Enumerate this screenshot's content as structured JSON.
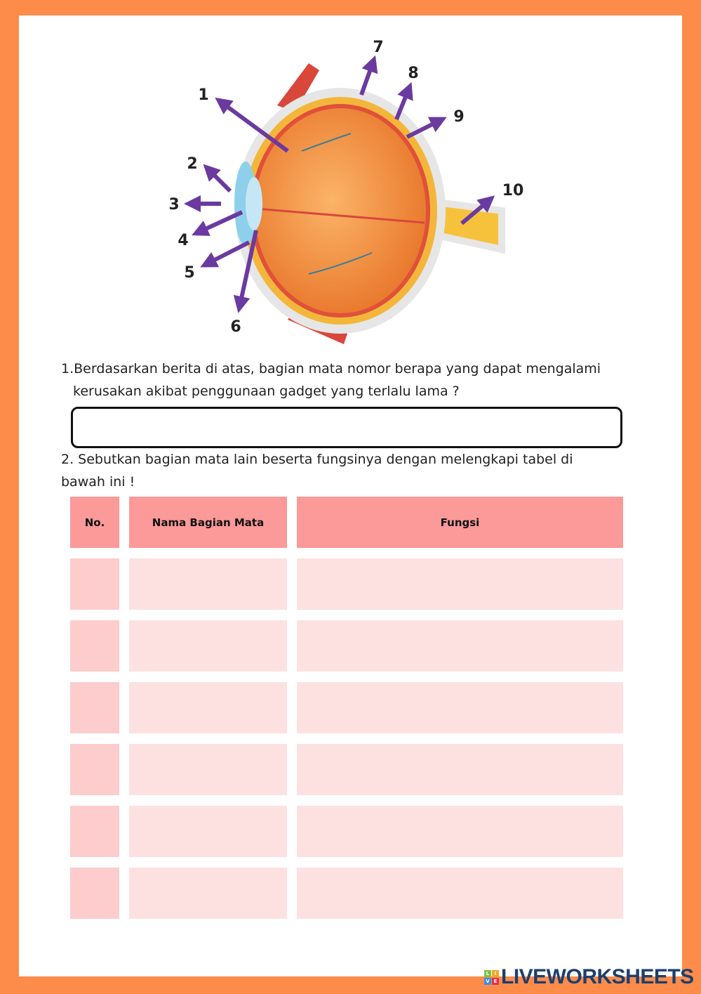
{
  "diagram": {
    "labels": [
      "1",
      "2",
      "3",
      "4",
      "5",
      "6",
      "7",
      "8",
      "9",
      "10"
    ],
    "arrow_color": "#6b3aa0"
  },
  "questions": [
    {
      "number": "1.",
      "text_line1": "Berdasarkan berita di atas, bagian mata nomor berapa yang dapat mengalami",
      "text_line2": "kerusakan akibat penggunaan gadget yang terlalu lama ?",
      "answer": ""
    },
    {
      "text_line1": "2. Sebutkan bagian mata lain beserta fungsinya dengan melengkapi tabel di",
      "text_line2": "bawah ini !"
    }
  ],
  "table": {
    "headers": [
      "No.",
      "Nama Bagian Mata",
      "Fungsi"
    ],
    "rows": [
      [
        "",
        "",
        ""
      ],
      [
        "",
        "",
        ""
      ],
      [
        "",
        "",
        ""
      ],
      [
        "",
        "",
        ""
      ],
      [
        "",
        "",
        ""
      ],
      [
        "",
        "",
        ""
      ]
    ]
  },
  "colors": {
    "border": "#fd8c4b",
    "header": "#fc9999",
    "cell_no": "#fdcccc",
    "cell": "#fde1e1"
  },
  "footer": {
    "logo": "LIVEWORKSHEETS"
  }
}
